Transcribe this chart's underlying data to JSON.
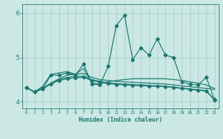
{
  "xlabel": "Humidex (Indice chaleur)",
  "ylabel": "",
  "bg_color": "#cce8e4",
  "grid_color": "#99ccc8",
  "line_color": "#1a7870",
  "xlim": [
    -0.5,
    23.5
  ],
  "ylim": [
    3.85,
    6.2
  ],
  "yticks": [
    4,
    5,
    6
  ],
  "xticks": [
    0,
    1,
    2,
    3,
    4,
    5,
    6,
    7,
    8,
    9,
    10,
    11,
    12,
    13,
    14,
    15,
    16,
    17,
    18,
    19,
    20,
    21,
    22,
    23
  ],
  "series": [
    {
      "x": [
        0,
        1,
        2,
        3,
        4,
        5,
        6,
        7,
        8,
        9,
        10,
        11,
        12,
        13,
        14,
        15,
        16,
        17,
        18,
        19,
        20,
        21,
        22,
        23
      ],
      "y": [
        4.32,
        4.22,
        4.3,
        4.6,
        4.6,
        4.65,
        4.6,
        4.85,
        4.4,
        4.38,
        4.8,
        5.72,
        5.95,
        4.95,
        5.22,
        5.05,
        5.42,
        5.05,
        5.0,
        4.45,
        4.4,
        4.38,
        4.55,
        4.05
      ],
      "marker": "D",
      "markersize": 2.5,
      "linewidth": 0.9
    },
    {
      "x": [
        0,
        1,
        2,
        3,
        4,
        5,
        6,
        7,
        8,
        9,
        10,
        11,
        12,
        13,
        14,
        15,
        16,
        17,
        18,
        19,
        20,
        21,
        22,
        23
      ],
      "y": [
        4.32,
        4.22,
        4.35,
        4.62,
        4.65,
        4.68,
        4.62,
        4.75,
        4.42,
        4.4,
        4.45,
        4.48,
        4.5,
        4.52,
        4.52,
        4.52,
        4.52,
        4.52,
        4.5,
        4.48,
        4.45,
        4.42,
        4.38,
        4.3
      ],
      "marker": null,
      "markersize": 0,
      "linewidth": 0.9
    },
    {
      "x": [
        0,
        1,
        2,
        3,
        4,
        5,
        6,
        7,
        8,
        9,
        10,
        11,
        12,
        13,
        14,
        15,
        16,
        17,
        18,
        19,
        20,
        21,
        22,
        23
      ],
      "y": [
        4.32,
        4.22,
        4.3,
        4.42,
        4.52,
        4.6,
        4.62,
        4.64,
        4.55,
        4.5,
        4.48,
        4.46,
        4.45,
        4.44,
        4.43,
        4.42,
        4.41,
        4.4,
        4.38,
        4.36,
        4.34,
        4.32,
        4.3,
        4.28
      ],
      "marker": null,
      "markersize": 0,
      "linewidth": 0.9
    },
    {
      "x": [
        0,
        1,
        2,
        3,
        4,
        5,
        6,
        7,
        8,
        9,
        10,
        11,
        12,
        13,
        14,
        15,
        16,
        17,
        18,
        19,
        20,
        21,
        22,
        23
      ],
      "y": [
        4.32,
        4.22,
        4.3,
        4.42,
        4.5,
        4.55,
        4.57,
        4.58,
        4.5,
        4.46,
        4.43,
        4.41,
        4.4,
        4.39,
        4.38,
        4.37,
        4.36,
        4.35,
        4.33,
        4.31,
        4.29,
        4.27,
        4.25,
        4.05
      ],
      "marker": null,
      "markersize": 0,
      "linewidth": 0.9
    },
    {
      "x": [
        0,
        1,
        2,
        3,
        4,
        5,
        6,
        7,
        8,
        9,
        10,
        11,
        12,
        13,
        14,
        15,
        16,
        17,
        18,
        19,
        20,
        21,
        22,
        23
      ],
      "y": [
        4.32,
        4.22,
        4.29,
        4.4,
        4.48,
        4.52,
        4.54,
        4.55,
        4.48,
        4.44,
        4.41,
        4.39,
        4.38,
        4.37,
        4.36,
        4.35,
        4.35,
        4.34,
        4.32,
        4.3,
        4.28,
        4.26,
        4.24,
        4.04
      ],
      "marker": "D",
      "markersize": 2.5,
      "linewidth": 0.9
    }
  ]
}
